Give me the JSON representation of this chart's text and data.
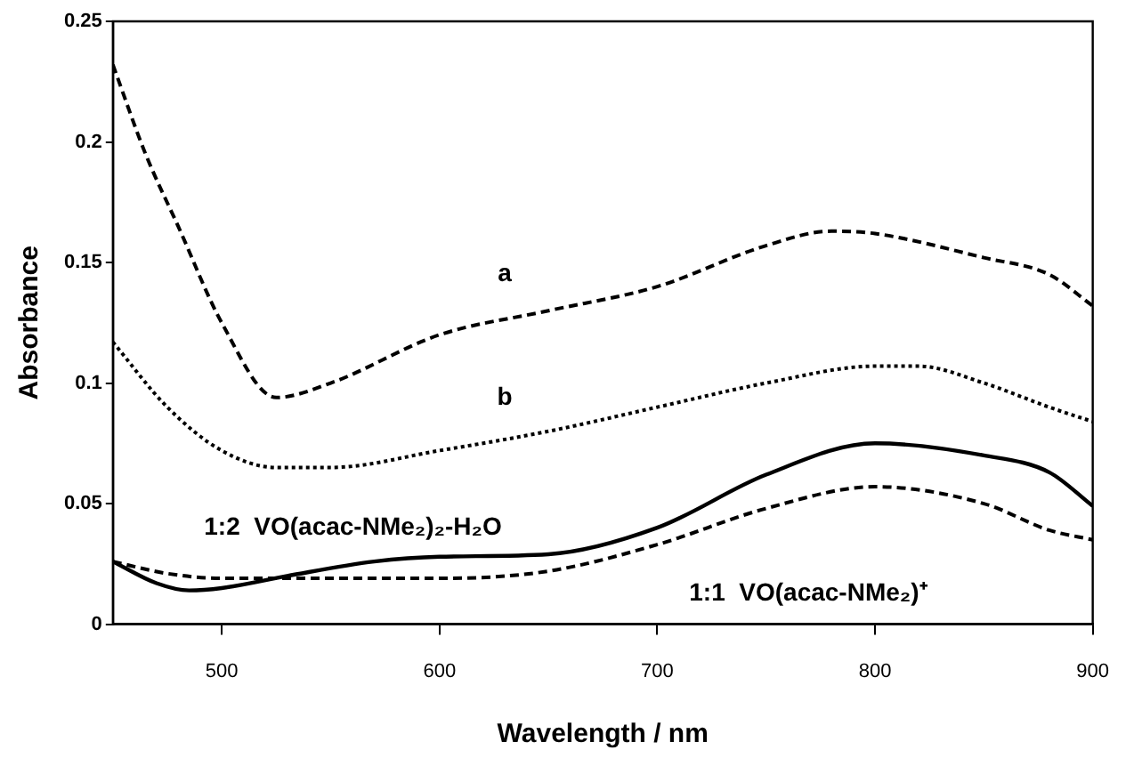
{
  "chart_data": {
    "type": "line",
    "xlabel": "Wavelength / nm",
    "ylabel": "Absorbance",
    "xlim": [
      450,
      900
    ],
    "xticks": [
      500,
      600,
      700,
      800,
      900
    ],
    "ylim": [
      0,
      0.25
    ],
    "yticks": [
      0,
      0.05,
      0.1,
      0.15,
      0.2,
      0.25
    ],
    "grid": false,
    "legend": false,
    "marker": "none",
    "series": [
      {
        "name": "a",
        "color": "#000000",
        "line_style": "dashed",
        "x": [
          450,
          465,
          480,
          500,
          525,
          550,
          600,
          650,
          700,
          750,
          780,
          800,
          850,
          880,
          900
        ],
        "values": [
          0.232,
          0.195,
          0.165,
          0.125,
          0.094,
          0.1,
          0.12,
          0.13,
          0.14,
          0.157,
          0.163,
          0.162,
          0.152,
          0.145,
          0.132
        ]
      },
      {
        "name": "b",
        "color": "#000000",
        "line_style": "dotted",
        "x": [
          450,
          475,
          500,
          525,
          550,
          600,
          650,
          700,
          750,
          800,
          820,
          850,
          880,
          900
        ],
        "values": [
          0.117,
          0.09,
          0.072,
          0.065,
          0.065,
          0.072,
          0.08,
          0.09,
          0.1,
          0.107,
          0.107,
          0.1,
          0.09,
          0.084
        ]
      },
      {
        "name": "1:2  VO(acac-NMe₂)₂-H₂O",
        "color": "#000000",
        "line_style": "solid",
        "x": [
          450,
          470,
          485,
          500,
          530,
          570,
          600,
          650,
          700,
          750,
          800,
          850,
          880,
          900
        ],
        "values": [
          0.026,
          0.017,
          0.014,
          0.015,
          0.02,
          0.026,
          0.028,
          0.029,
          0.04,
          0.062,
          0.075,
          0.07,
          0.063,
          0.049
        ]
      },
      {
        "name": "1:1  VO(acac-NMe₂)⁺",
        "color": "#000000",
        "line_style": "dashed",
        "x": [
          450,
          475,
          500,
          550,
          600,
          650,
          700,
          750,
          800,
          850,
          880,
          900
        ],
        "values": [
          0.026,
          0.021,
          0.019,
          0.019,
          0.019,
          0.022,
          0.033,
          0.048,
          0.057,
          0.05,
          0.039,
          0.035
        ]
      }
    ]
  }
}
